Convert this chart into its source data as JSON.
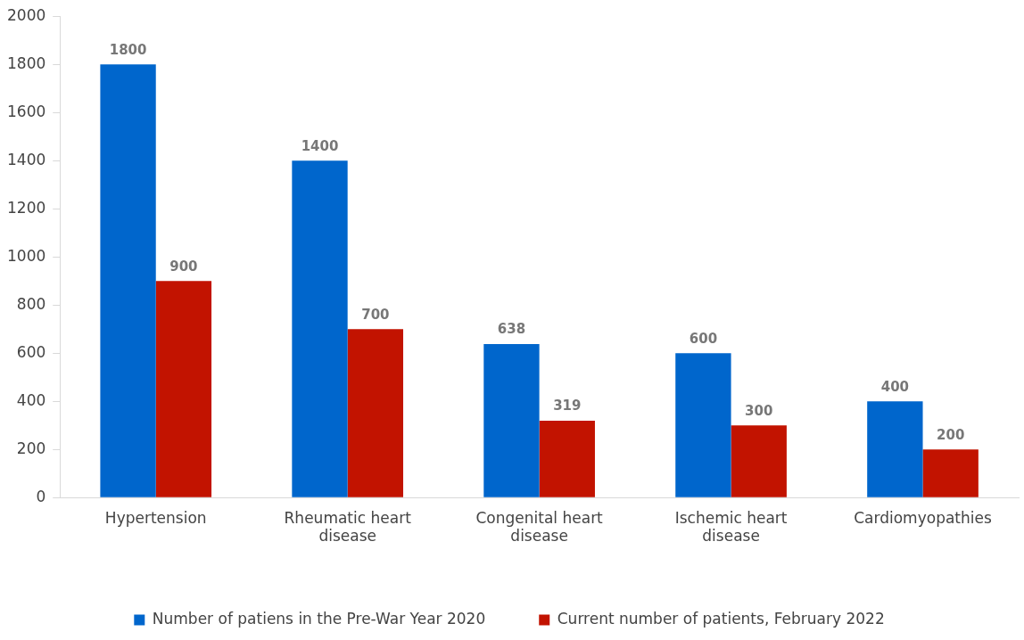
{
  "chart_data": {
    "type": "bar",
    "categories": [
      "Hypertension",
      "Rheumatic heart disease",
      "Congenital heart disease",
      "Ischemic heart disease",
      "Cardiomyopathies"
    ],
    "series": [
      {
        "name": "Number of patiens in the Pre-War Year 2020",
        "color": "#0066cc",
        "values": [
          1800,
          1400,
          638,
          600,
          400
        ]
      },
      {
        "name": "Current number of patients, February 2022",
        "color": "#c21300",
        "values": [
          900,
          700,
          319,
          300,
          200
        ]
      }
    ],
    "ylim": [
      0,
      2000
    ],
    "yticks": [
      0,
      200,
      400,
      600,
      800,
      1000,
      1200,
      1400,
      1600,
      1800,
      2000
    ],
    "grid": false,
    "legend": "bottom",
    "data_labels": true
  }
}
